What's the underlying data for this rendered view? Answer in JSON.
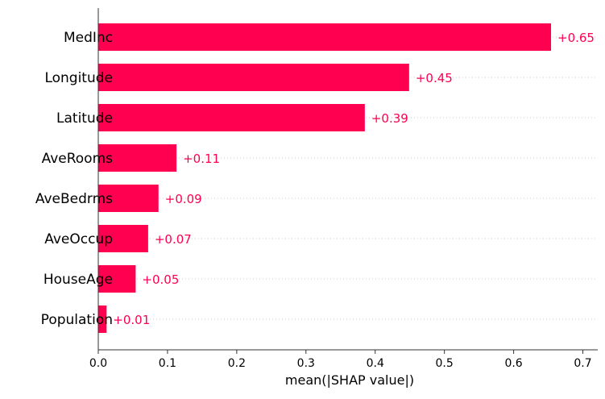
{
  "chart_data": {
    "type": "bar",
    "orientation": "horizontal",
    "categories": [
      "MedInc",
      "Longitude",
      "Latitude",
      "AveRooms",
      "AveBedrms",
      "AveOccup",
      "HouseAge",
      "Population"
    ],
    "values": [
      0.654,
      0.449,
      0.385,
      0.113,
      0.087,
      0.072,
      0.054,
      0.012
    ],
    "value_labels": [
      "+0.65",
      "+0.45",
      "+0.39",
      "+0.11",
      "+0.09",
      "+0.07",
      "+0.05",
      "+0.01"
    ],
    "xlabel": "mean(|SHAP value|)",
    "ylabel": "",
    "xlim": [
      0,
      0.72
    ],
    "xticks": [
      0.0,
      0.1,
      0.2,
      0.3,
      0.4,
      0.5,
      0.6,
      0.7
    ],
    "xtick_labels": [
      "0.0",
      "0.1",
      "0.2",
      "0.3",
      "0.4",
      "0.5",
      "0.6",
      "0.7"
    ],
    "grid": "dotted horizontal guide lines",
    "colors": {
      "bar": "#ff0051",
      "value_label": "#ff0051",
      "axis": "#333333",
      "text": "#000000",
      "guide": "#cccccc"
    }
  }
}
